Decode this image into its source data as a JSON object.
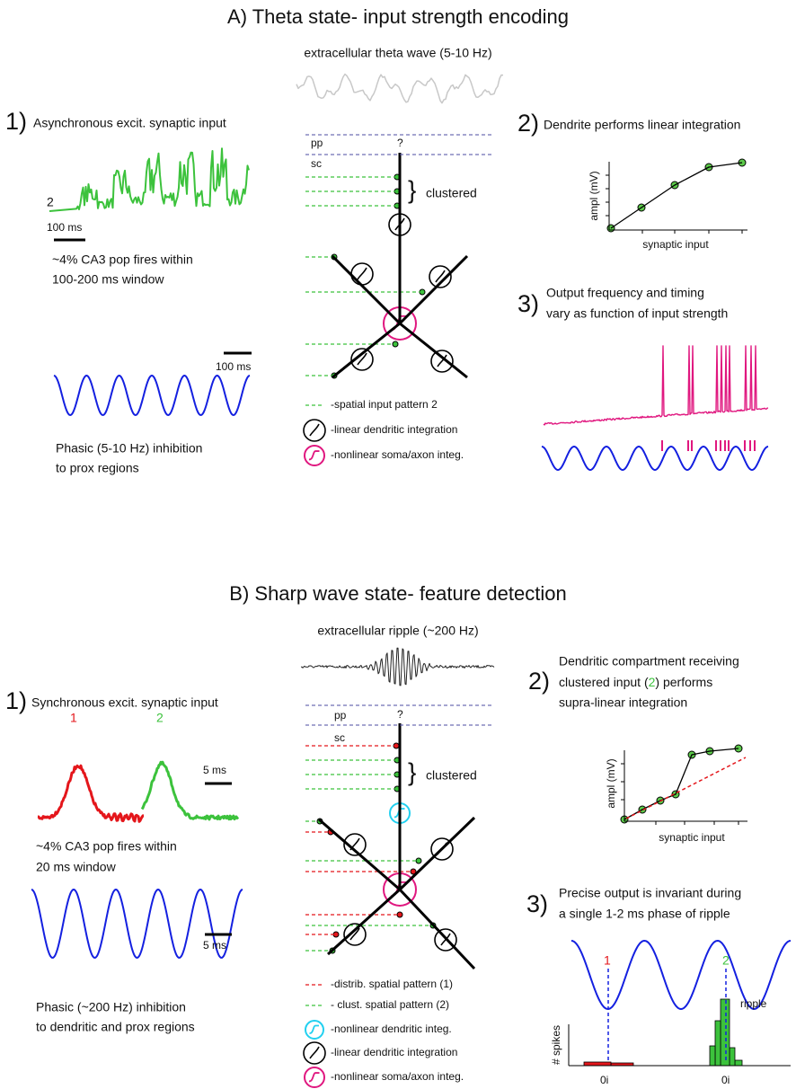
{
  "panel_a": {
    "title": "A) Theta state- input strength encoding",
    "wave_label": "extracellular theta wave (5-10 Hz)",
    "input": {
      "number": "1)",
      "label": "Asynchronous excit. synaptic input",
      "trace_label": "2",
      "scale_bar": "100 ms",
      "note_lines": [
        "~4% CA3 pop fires within",
        "100-200 ms window"
      ]
    },
    "inhibition": {
      "scale_bar": "100 ms",
      "note_lines": [
        "Phasic (5-10 Hz) inhibition",
        "to prox regions"
      ]
    },
    "neuron": {
      "pp": "pp",
      "question": "?",
      "sc": "sc",
      "cluster_label": "clustered"
    },
    "legend": [
      "-spatial input pattern 2",
      "-linear dendritic integration",
      "-nonlinear soma/axon integ."
    ],
    "integration": {
      "number": "2)",
      "label": "Dendrite performs linear integration",
      "y_label": "ampl (mV)",
      "x_label": "synaptic input"
    },
    "output": {
      "number": "3)",
      "lines": [
        "Output frequency and timing",
        "vary as function of input strength"
      ]
    }
  },
  "panel_b": {
    "title": "B) Sharp wave state- feature detection",
    "wave_label": "extracellular ripple (~200 Hz)",
    "input": {
      "number": "1)",
      "label": "Synchronous excit. synaptic input",
      "trace_labels": [
        "1",
        "2"
      ],
      "scale_bar": "5 ms",
      "note_lines": [
        "~4% CA3 pop fires within",
        "20 ms window"
      ]
    },
    "inhibition": {
      "scale_bar": "5 ms",
      "note_lines": [
        "Phasic (~200 Hz) inhibition",
        "to dendritic and prox regions"
      ]
    },
    "neuron": {
      "pp": "pp",
      "question": "?",
      "sc": "sc",
      "cluster_label": "clustered"
    },
    "legend": [
      "-distrib. spatial pattern (1)",
      "- clust. spatial pattern (2)",
      "-nonlinear dendritic integ.",
      "-linear dendritic integration",
      "-nonlinear soma/axon integ."
    ],
    "integration": {
      "number": "2)",
      "lines": [
        "Dendritic compartment receiving",
        "clustered input (",
        "2",
        ") performs",
        "supra-linear integration"
      ],
      "y_label": "ampl (mV)",
      "x_label": "synaptic input"
    },
    "output": {
      "number": "3)",
      "lines": [
        "Precise output is invariant during",
        "a single 1-2 ms phase of ripple"
      ],
      "phase_labels": [
        "1",
        "2"
      ],
      "ripple_label": "ripple",
      "y_label": "# spikes",
      "x_labels": [
        "0i",
        "0i"
      ]
    }
  }
}
